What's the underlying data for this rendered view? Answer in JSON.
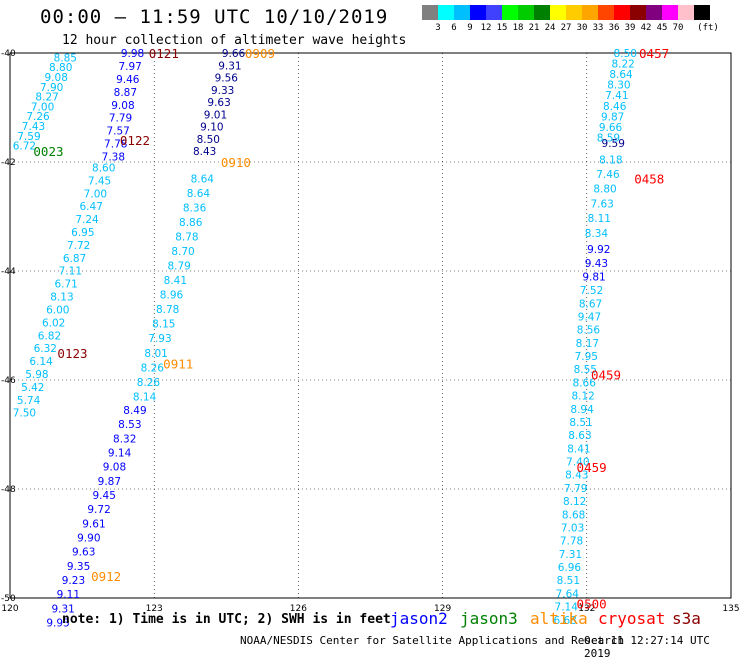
{
  "title": "00:00 — 11:59 UTC 10/10/2019",
  "subtitle": "12 hour collection of altimeter wave heights",
  "color_scale": {
    "colors": [
      "#808080",
      "#00ffff",
      "#00bfff",
      "#0000ff",
      "#4040ff",
      "#00ff00",
      "#00cc00",
      "#008000",
      "#ffff00",
      "#ffcc00",
      "#ffa500",
      "#ff4500",
      "#ff0000",
      "#8b0000",
      "#800080",
      "#ff00ff",
      "#ffc0cb",
      "#000000"
    ],
    "ticks": [
      "3",
      "6",
      "9",
      "12",
      "15",
      "18",
      "21",
      "24",
      "27",
      "30",
      "33",
      "36",
      "39",
      "42",
      "45",
      "70"
    ],
    "unit": "(ft)"
  },
  "axes": {
    "lat_labels": [
      "-40",
      "-42",
      "-44",
      "-46",
      "-48",
      "-50"
    ],
    "lon_labels": [
      "120",
      "123",
      "126",
      "129",
      "132",
      "135"
    ]
  },
  "colors": {
    "jason2": "#0000ff",
    "jason3": "#008000",
    "altika": "#ff8c00",
    "cryosat": "#ff0000",
    "s3a": "#8b0000",
    "cyan": "#00bfff",
    "navy": "#00008b"
  },
  "pass_labels": [
    {
      "text": "0121",
      "sat": "s3a",
      "lon": 123.2,
      "lat": -40.0
    },
    {
      "text": "0909",
      "sat": "altika",
      "lon": 125.2,
      "lat": -40.0
    },
    {
      "text": "0122",
      "sat": "s3a",
      "lon": 122.6,
      "lat": -41.6
    },
    {
      "text": "0023",
      "sat": "jason3",
      "lon": 120.8,
      "lat": -41.8
    },
    {
      "text": "0910",
      "sat": "altika",
      "lon": 124.7,
      "lat": -42.0
    },
    {
      "text": "0123",
      "sat": "s3a",
      "lon": 121.3,
      "lat": -45.5
    },
    {
      "text": "0911",
      "sat": "altika",
      "lon": 123.5,
      "lat": -45.7
    },
    {
      "text": "0912",
      "sat": "altika",
      "lon": 122.0,
      "lat": -49.6
    },
    {
      "text": "0457",
      "sat": "cryosat",
      "lon": 133.4,
      "lat": -40.0
    },
    {
      "text": "0458",
      "sat": "cryosat",
      "lon": 133.3,
      "lat": -42.3
    },
    {
      "text": "0459",
      "sat": "cryosat",
      "lon": 132.4,
      "lat": -45.9
    },
    {
      "text": "0459",
      "sat": "cryosat",
      "lon": 132.1,
      "lat": -47.6
    },
    {
      "text": "0500",
      "sat": "cryosat",
      "lon": 132.1,
      "lat": -50.1
    }
  ],
  "tracks": [
    {
      "sat": "cyan",
      "lon0": 121.15,
      "lat0": -40.08,
      "lon1": 120.3,
      "lat1": -41.7,
      "values": [
        "8.85",
        "8.80",
        "9.08",
        "7.90",
        "8.27",
        "7.00",
        "7.26",
        "7.43",
        "7.59",
        "6.72"
      ]
    },
    {
      "sat": "jason2",
      "lon0": 122.55,
      "lat0": -40.0,
      "lon1": 122.15,
      "lat1": -41.9,
      "values": [
        "9.98",
        "7.97",
        "9.46",
        "8.87",
        "9.08",
        "7.79",
        "7.57",
        "7.78",
        "7.38"
      ]
    },
    {
      "sat": "cyan",
      "lon0": 121.95,
      "lat0": -42.1,
      "lon1": 120.3,
      "lat1": -46.6,
      "values": [
        "8.60",
        "7.45",
        "7.00",
        "6.47",
        "7.24",
        "6.95",
        "7.72",
        "6.87",
        "7.11",
        "6.71",
        "8.13",
        "6.00",
        "6.02",
        "6.82",
        "6.32",
        "6.14",
        "5.98",
        "5.42",
        "5.74",
        "7.50"
      ]
    },
    {
      "sat": "navy",
      "lon0": 124.65,
      "lat0": -40.0,
      "lon1": 124.05,
      "lat1": -41.8,
      "values": [
        "9.66",
        "9.31",
        "9.56",
        "9.33",
        "9.63",
        "9.01",
        "9.10",
        "8.50",
        "8.43"
      ]
    },
    {
      "sat": "cyan",
      "lon0": 124.0,
      "lat0": -42.3,
      "lon1": 122.8,
      "lat1": -46.3,
      "values": [
        "8.64",
        "8.64",
        "8.36",
        "8.86",
        "8.78",
        "8.70",
        "8.79",
        "8.41",
        "8.96",
        "8.78",
        "8.15",
        "7.93",
        "8.01",
        "8.26",
        "8.26",
        "8.14"
      ]
    },
    {
      "sat": "jason2",
      "lon0": 122.6,
      "lat0": -46.55,
      "lon1": 121.0,
      "lat1": -50.45,
      "values": [
        "8.49",
        "8.53",
        "8.32",
        "9.14",
        "9.08",
        "9.87",
        "9.45",
        "9.72",
        "9.61",
        "9.90",
        "9.63",
        "9.35",
        "9.23",
        "9.11",
        "9.31",
        "9.93"
      ]
    },
    {
      "sat": "cyan",
      "lon0": 132.8,
      "lat0": -40.0,
      "lon1": 132.45,
      "lat1": -41.55,
      "values": [
        "8.50",
        "8.22",
        "8.64",
        "8.30",
        "7.41",
        "8.46",
        "9.87",
        "9.66",
        "8.59"
      ]
    },
    {
      "sat": "navy",
      "lon0": 132.55,
      "lat0": -41.65,
      "lon1": 132.55,
      "lat1": -41.65,
      "values": [
        "9.59"
      ]
    },
    {
      "sat": "cyan",
      "lon0": 132.5,
      "lat0": -41.95,
      "lon1": 132.2,
      "lat1": -43.3,
      "values": [
        "8.18",
        "7.46",
        "8.80",
        "7.63",
        "8.11",
        "8.34"
      ]
    },
    {
      "sat": "jason2",
      "lon0": 132.25,
      "lat0": -43.6,
      "lon1": 132.15,
      "lat1": -44.1,
      "values": [
        "9.92",
        "9.43",
        "9.81"
      ]
    },
    {
      "sat": "cyan",
      "lon0": 132.1,
      "lat0": -44.35,
      "lon1": 131.55,
      "lat1": -50.4,
      "values": [
        "7.52",
        "8.67",
        "9.47",
        "8.56",
        "8.17",
        "7.95",
        "8.55",
        "8.66",
        "8.12",
        "8.94",
        "8.51",
        "8.63",
        "8.41",
        "7.40",
        "8.43",
        "7.79",
        "8.12",
        "8.68",
        "7.03",
        "7.78",
        "7.31",
        "6.96",
        "8.51",
        "7.64",
        "7.14",
        "6.68"
      ]
    }
  ],
  "note": "note: 1) Time is in UTC; 2) SWH is in feet",
  "legend": [
    {
      "text": "jason2",
      "sat": "jason2"
    },
    {
      "text": "jason3",
      "sat": "jason3"
    },
    {
      "text": "altika",
      "sat": "altika"
    },
    {
      "text": "cryosat",
      "sat": "cryosat"
    },
    {
      "text": "s3a",
      "sat": "s3a"
    }
  ],
  "credit": "NOAA/NESDIS Center for Satellite Applications and Research",
  "timestamp": "Oct 11 12:27:14 UTC 2019"
}
